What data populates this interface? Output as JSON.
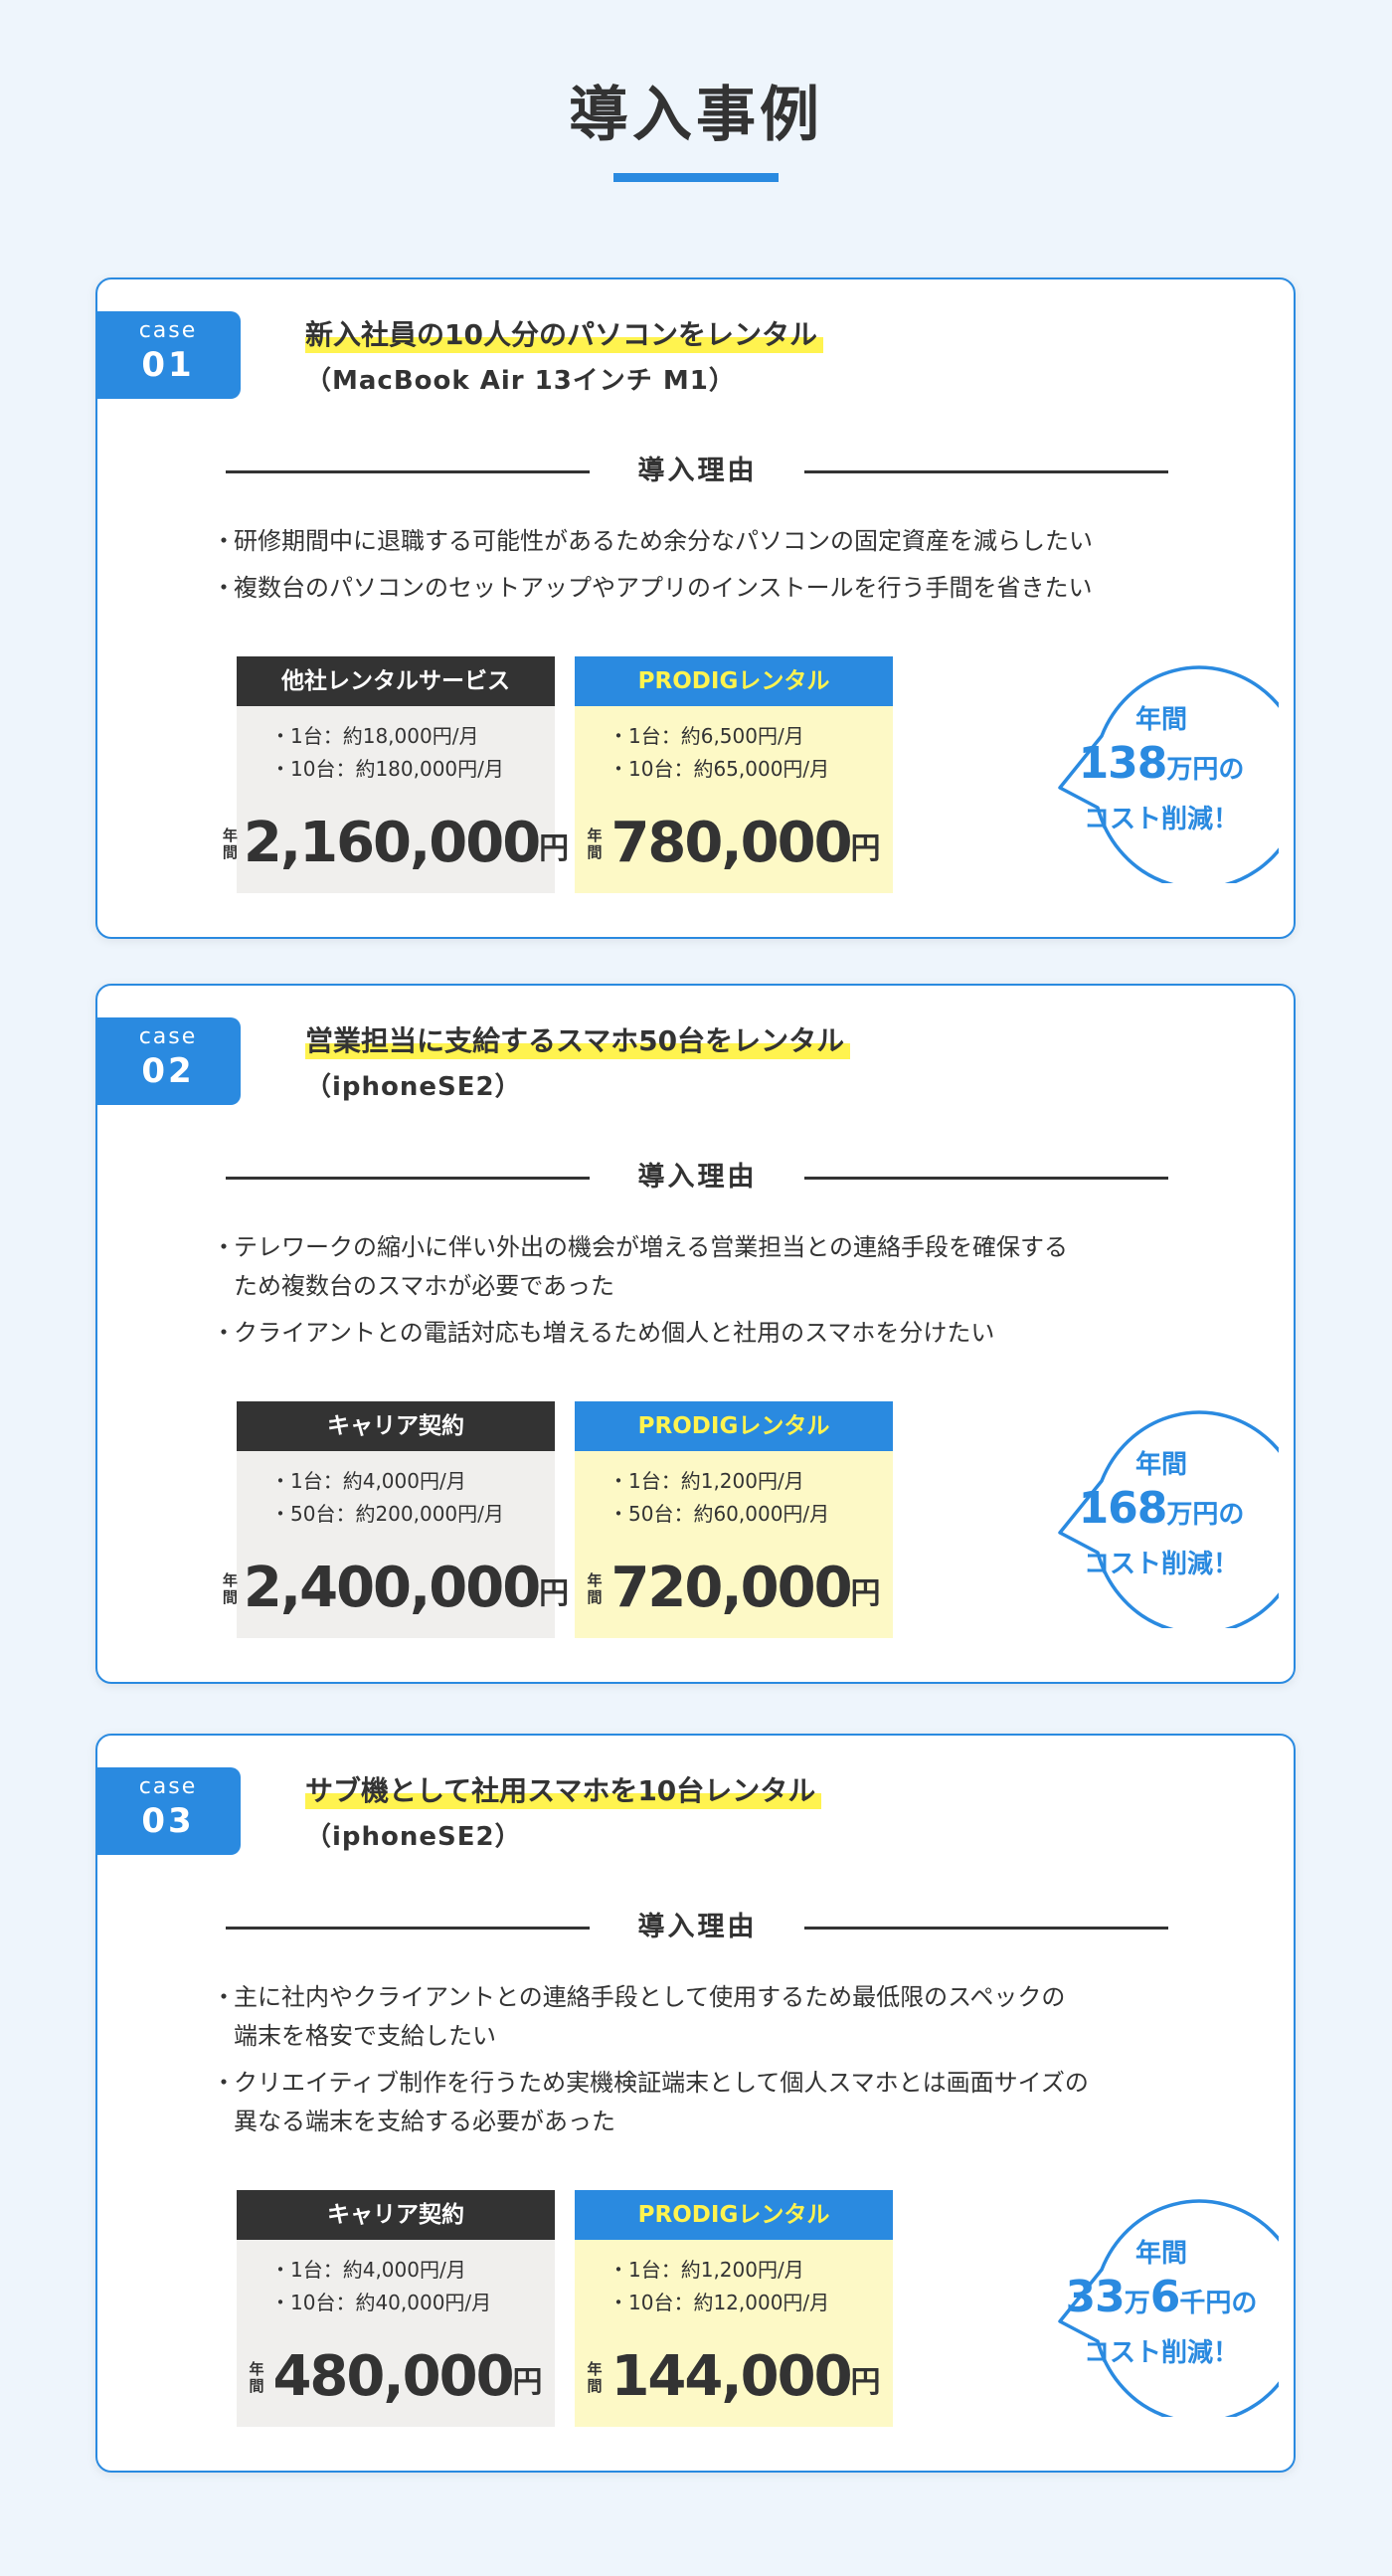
{
  "page": {
    "title": "導入事例"
  },
  "colors": {
    "accent": "#2a8ae0",
    "highlight": "#fff34f",
    "dark": "#333333",
    "other_bg": "#f0efed",
    "ours_bg": "#fdf9c6",
    "page_bg": "#eef5fc"
  },
  "cases": [
    {
      "badge_label": "case",
      "badge_number": "01",
      "title": "新入社員の10人分のパソコンをレンタル",
      "subtitle": "（MacBook Air 13インチ M1）",
      "reason_heading": "導入理由",
      "reasons": [
        {
          "lines": [
            "研修期間中に退職する可能性があるため余分なパソコンの固定資産を減らしたい"
          ]
        },
        {
          "lines": [
            "複数台のパソコンのセットアップやアプリのインストールを行う手間を省きたい"
          ]
        }
      ],
      "other": {
        "label": "他社レンタルサービス",
        "rows": [
          "・1台：約18,000円/月",
          "・10台：約180,000円/月"
        ],
        "annual_label": "年間",
        "amount": "2,160,000",
        "unit": "円"
      },
      "ours": {
        "label": "PRODIGレンタル",
        "rows": [
          "・1台：約6,500円/月",
          "・10台：約65,000円/月"
        ],
        "annual_label": "年間",
        "amount": "780,000",
        "unit": "円"
      },
      "saving": {
        "top": "年間",
        "parts": [
          {
            "big": "138"
          },
          {
            "sm": "万円の"
          }
        ],
        "bottom": "コスト削減！"
      }
    },
    {
      "badge_label": "case",
      "badge_number": "02",
      "title": "営業担当に支給するスマホ50台をレンタル",
      "subtitle": "（iphoneSE2）",
      "reason_heading": "導入理由",
      "reasons": [
        {
          "lines": [
            "テレワークの縮小に伴い外出の機会が増える営業担当との連絡手段を確保する",
            "ため複数台のスマホが必要であった"
          ]
        },
        {
          "lines": [
            "クライアントとの電話対応も増えるため個人と社用のスマホを分けたい"
          ]
        }
      ],
      "other": {
        "label": "キャリア契約",
        "rows": [
          "・1台：約4,000円/月",
          "・50台：約200,000円/月"
        ],
        "annual_label": "年間",
        "amount": "2,400,000",
        "unit": "円"
      },
      "ours": {
        "label": "PRODIGレンタル",
        "rows": [
          "・1台：約1,200円/月",
          "・50台：約60,000円/月"
        ],
        "annual_label": "年間",
        "amount": "720,000",
        "unit": "円"
      },
      "saving": {
        "top": "年間",
        "parts": [
          {
            "big": "168"
          },
          {
            "sm": "万円の"
          }
        ],
        "bottom": "コスト削減！"
      }
    },
    {
      "badge_label": "case",
      "badge_number": "03",
      "title": "サブ機として社用スマホを10台レンタル",
      "subtitle": "（iphoneSE2）",
      "reason_heading": "導入理由",
      "reasons": [
        {
          "lines": [
            "主に社内やクライアントとの連絡手段として使用するため最低限のスペックの",
            "端末を格安で支給したい"
          ]
        },
        {
          "lines": [
            "クリエイティブ制作を行うため実機検証端末として個人スマホとは画面サイズの",
            "異なる端末を支給する必要があった"
          ]
        }
      ],
      "other": {
        "label": "キャリア契約",
        "rows": [
          "・1台：約4,000円/月",
          "・10台：約40,000円/月"
        ],
        "annual_label": "年間",
        "amount": "480,000",
        "unit": "円"
      },
      "ours": {
        "label": "PRODIGレンタル",
        "rows": [
          "・1台：約1,200円/月",
          "・10台：約12,000円/月"
        ],
        "annual_label": "年間",
        "amount": "144,000",
        "unit": "円"
      },
      "saving": {
        "top": "年間",
        "parts": [
          {
            "big": "33"
          },
          {
            "sm": "万"
          },
          {
            "big": "6"
          },
          {
            "sm": "千円の"
          }
        ],
        "bottom": "コスト削減！"
      }
    }
  ]
}
